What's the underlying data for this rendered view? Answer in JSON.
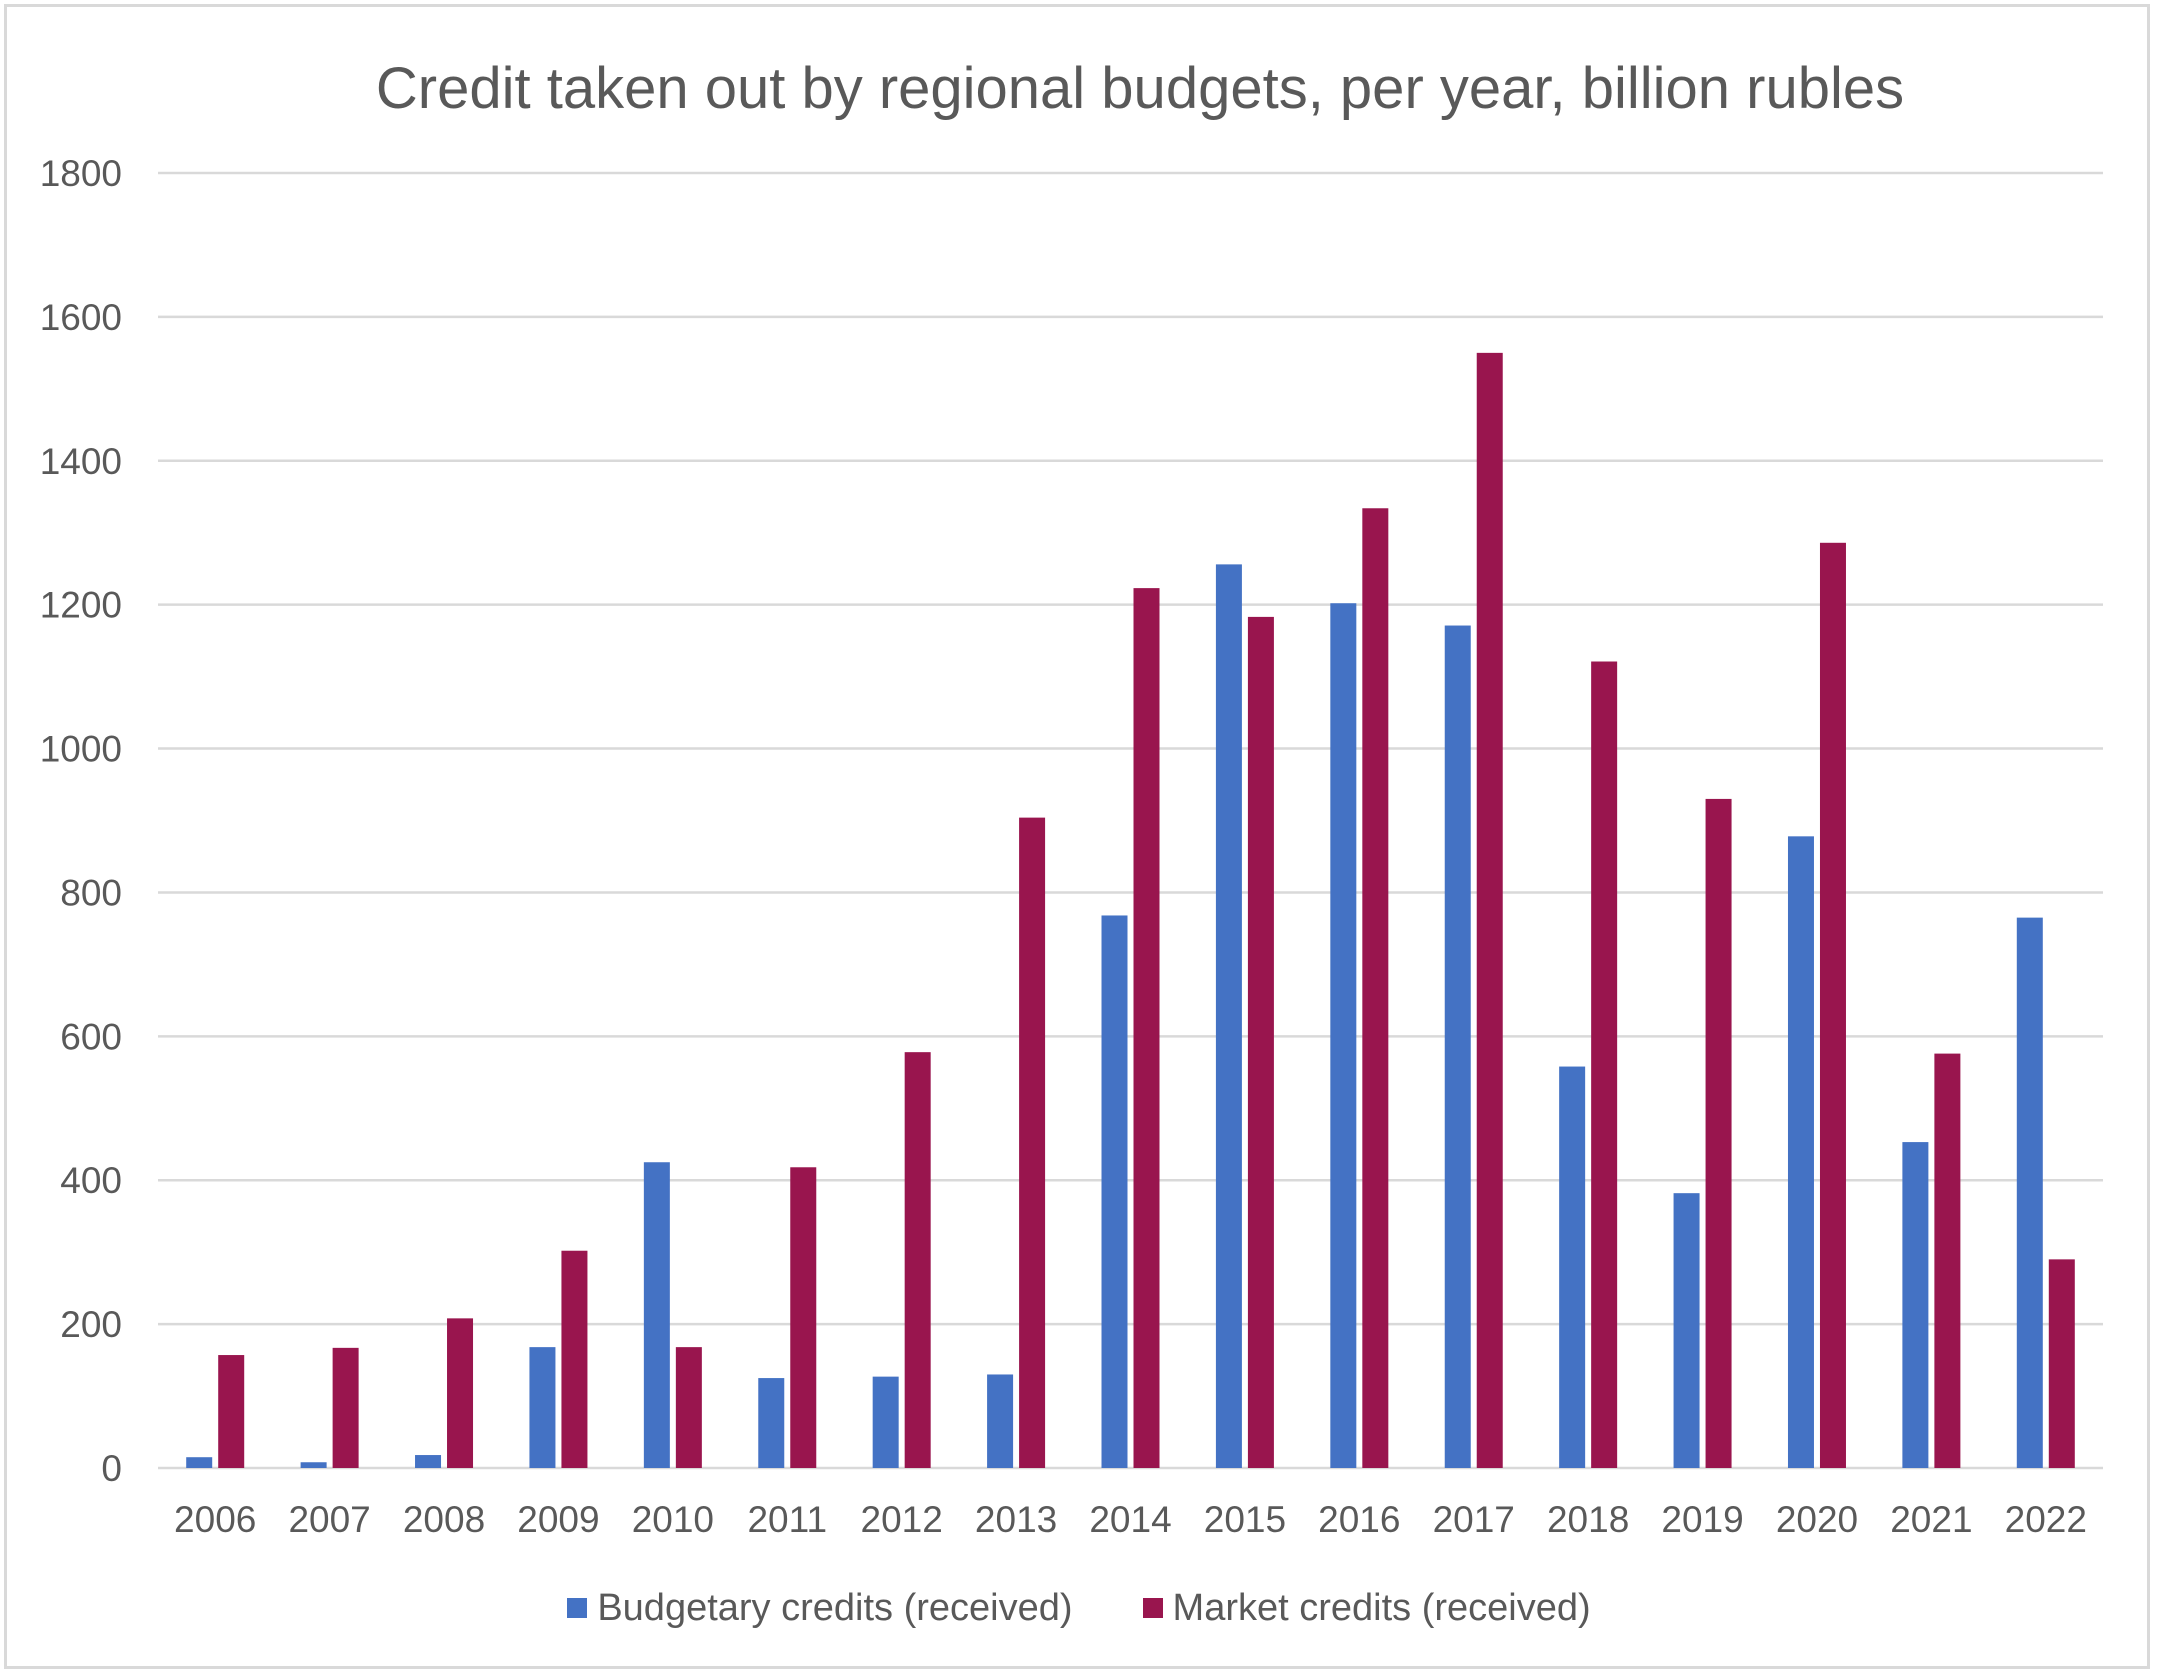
{
  "chart_data": {
    "type": "bar",
    "title": "Credit taken out by regional budgets, per year, billion rubles",
    "xlabel": "",
    "ylabel": "",
    "ylim": [
      0,
      1800
    ],
    "yticks": [
      "0",
      "200",
      "400",
      "600",
      "800",
      "1000",
      "1200",
      "1400",
      "1600",
      "1800"
    ],
    "grid": true,
    "legend_position": "bottom",
    "categories": [
      "2006",
      "2007",
      "2008",
      "2009",
      "2010",
      "2011",
      "2012",
      "2013",
      "2014",
      "2015",
      "2016",
      "2017",
      "2018",
      "2019",
      "2020",
      "2021",
      "2022"
    ],
    "series": [
      {
        "name": "Budgetary credits (received)",
        "color": "#4472c4",
        "values": [
          15,
          8,
          18,
          168,
          425,
          125,
          127,
          130,
          768,
          1256,
          1202,
          1171,
          558,
          382,
          878,
          453,
          765
        ]
      },
      {
        "name": "Market credits (received)",
        "color": "#99154e",
        "values": [
          157,
          167,
          208,
          302,
          168,
          418,
          578,
          904,
          1223,
          1183,
          1334,
          1550,
          1121,
          930,
          1286,
          576,
          290
        ]
      }
    ]
  },
  "colors": {
    "text": "#595959",
    "grid": "#d9d9d9",
    "border": "#d9d9d9"
  }
}
